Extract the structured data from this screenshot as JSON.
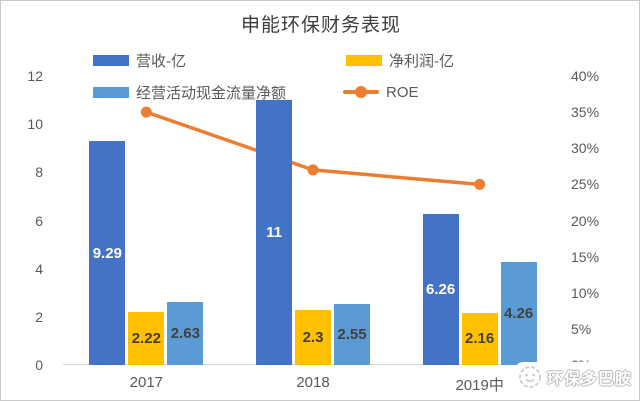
{
  "title": "申能环保财务表现",
  "legend": [
    {
      "label": "营收-亿",
      "color": "#4472C4",
      "type": "bar"
    },
    {
      "label": "净利润-亿",
      "color": "#FFC000",
      "type": "bar"
    },
    {
      "label": "经营活动现金流量净额",
      "color": "#5B9BD5",
      "type": "bar"
    },
    {
      "label": "ROE",
      "color": "#ED7D31",
      "type": "line"
    }
  ],
  "watermark": {
    "text": "环保多巴胺"
  },
  "chart_data": {
    "type": "bar+line",
    "title": "申能环保财务表现",
    "categories": [
      "2017",
      "2018",
      "2019中"
    ],
    "series": [
      {
        "name": "营收-亿",
        "type": "bar",
        "color": "#4472C4",
        "values": [
          9.29,
          11,
          6.26
        ],
        "labels": [
          "9.29",
          "11",
          "6.26"
        ],
        "label_color": "#ffffff",
        "axis": "left"
      },
      {
        "name": "净利润-亿",
        "type": "bar",
        "color": "#FFC000",
        "values": [
          2.22,
          2.3,
          2.16
        ],
        "labels": [
          "2.22",
          "2.3",
          "2.16"
        ],
        "label_color": "#404040",
        "axis": "left"
      },
      {
        "name": "经营活动现金流量净额",
        "type": "bar",
        "color": "#5B9BD5",
        "values": [
          2.63,
          2.55,
          4.26
        ],
        "labels": [
          "2.63",
          "2.55",
          "4.26"
        ],
        "label_color": "#404040",
        "axis": "left"
      },
      {
        "name": "ROE",
        "type": "line",
        "color": "#ED7D31",
        "values": [
          35,
          27,
          25
        ],
        "unit": "%",
        "axis": "right"
      }
    ],
    "left_axis": {
      "min": 0,
      "max": 12,
      "step": 2,
      "ticks": [
        "0",
        "2",
        "4",
        "6",
        "8",
        "10",
        "12"
      ]
    },
    "right_axis": {
      "min": 0,
      "max": 40,
      "step": 5,
      "ticks": [
        "0%",
        "5%",
        "10%",
        "15%",
        "20%",
        "25%",
        "30%",
        "35%",
        "40%"
      ]
    },
    "grid": false,
    "legend_position": "top"
  }
}
